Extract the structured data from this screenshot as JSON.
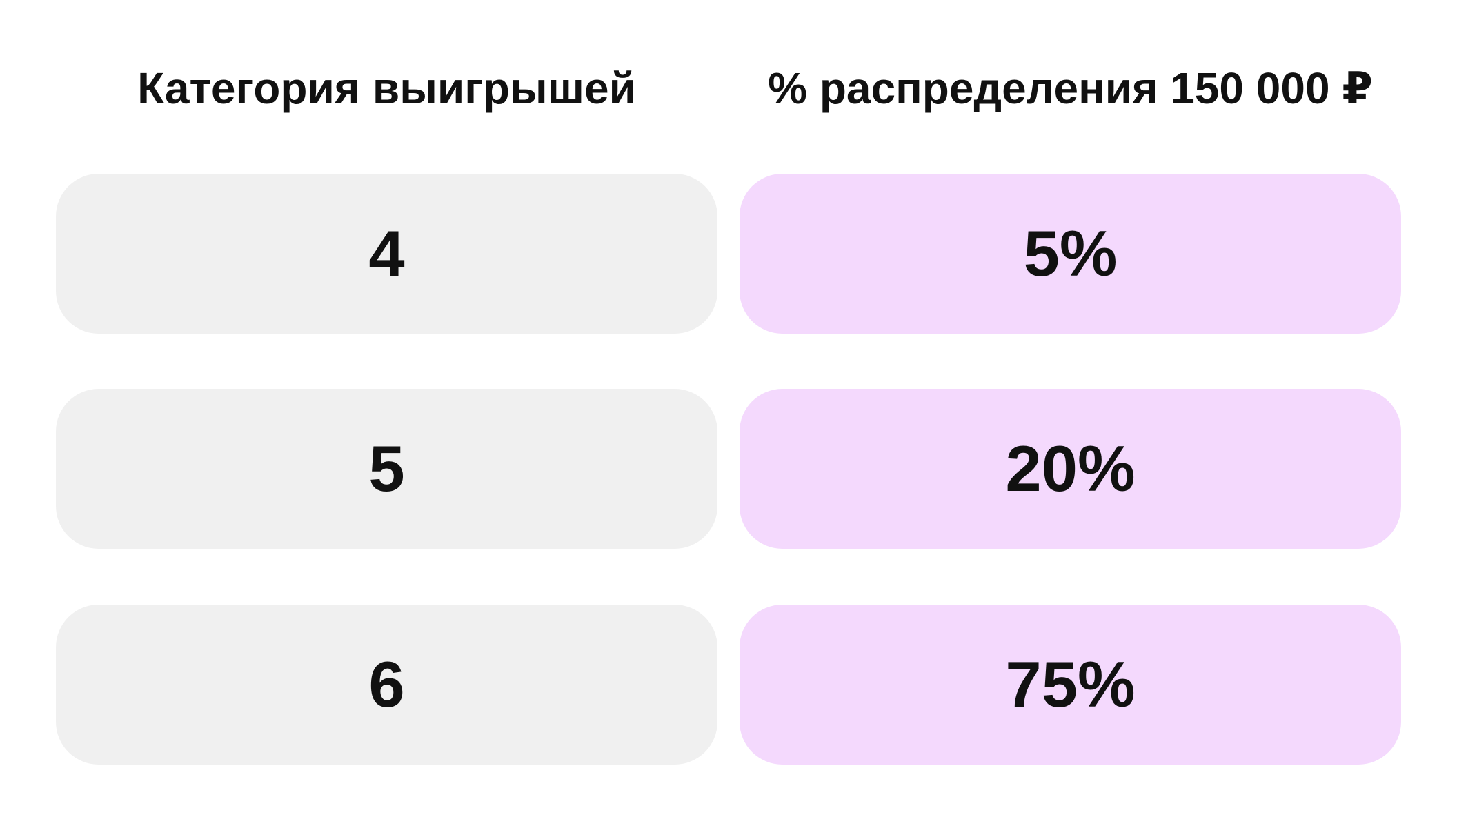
{
  "table": {
    "headers": [
      "Категория выигрышей",
      "% распределения 150 000 ₽"
    ],
    "rows": [
      {
        "category": "4",
        "share": "5%"
      },
      {
        "category": "5",
        "share": "20%"
      },
      {
        "category": "6",
        "share": "75%"
      }
    ]
  },
  "colors": {
    "category_cell": "#f0f0f0",
    "share_cell": "#f4d9fd"
  }
}
